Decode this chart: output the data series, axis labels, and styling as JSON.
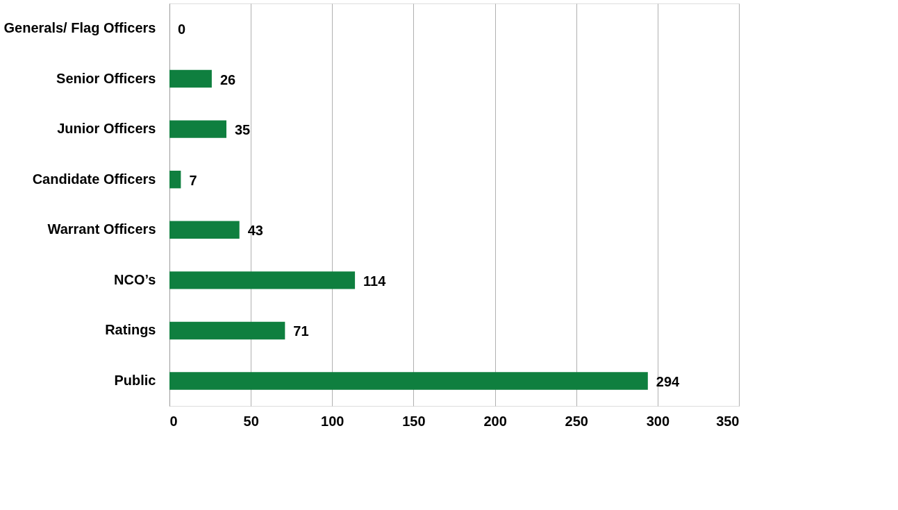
{
  "chart_data": {
    "type": "bar",
    "orientation": "horizontal",
    "categories": [
      "Generals/ Flag Officers",
      "Senior Officers",
      "Junior Officers",
      "Candidate Officers",
      "Warrant Officers",
      "NCO’s",
      "Ratings",
      "Public"
    ],
    "values": [
      0,
      26,
      35,
      7,
      43,
      114,
      71,
      294
    ],
    "color": "#0f7f3f",
    "xlim": [
      0,
      350
    ],
    "xticks": [
      0,
      50,
      100,
      150,
      200,
      250,
      300,
      350
    ],
    "grid": "x",
    "data_labels": true
  }
}
